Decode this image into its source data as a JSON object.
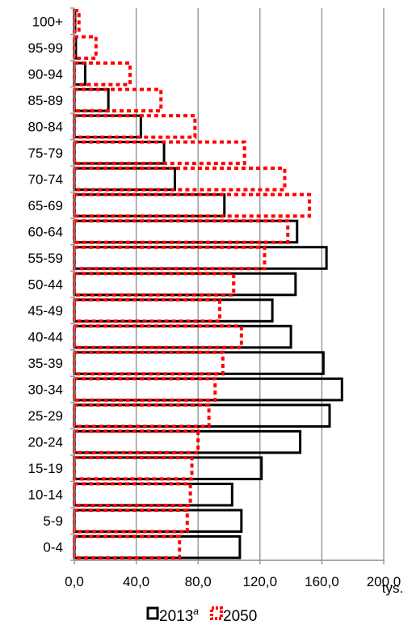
{
  "chart_data": {
    "type": "bar",
    "orientation": "horizontal",
    "categories": [
      "0-4",
      "5-9",
      "10-14",
      "15-19",
      "20-24",
      "25-29",
      "30-34",
      "35-39",
      "40-44",
      "45-49",
      "50-44",
      "55-59",
      "60-64",
      "65-69",
      "70-74",
      "75-79",
      "80-84",
      "85-89",
      "90-94",
      "95-99",
      "100+"
    ],
    "series": [
      {
        "name": "2013",
        "name_superscript": "a",
        "values": [
          107,
          108,
          102,
          121,
          146,
          165,
          173,
          161,
          140,
          128,
          143,
          163,
          144,
          97,
          65,
          58,
          43,
          22,
          7,
          1,
          0.5
        ],
        "color": "#000000",
        "line_style": "solid"
      },
      {
        "name": "2050",
        "values": [
          68,
          73,
          75,
          76,
          80,
          87,
          91,
          96,
          108,
          94,
          103,
          123,
          138,
          152,
          136,
          110,
          78,
          56,
          36,
          14,
          3
        ],
        "color": "#ff0000",
        "line_style": "dotted"
      }
    ],
    "xlim": [
      0,
      200
    ],
    "xticks": [
      "0,0",
      "40,0",
      "80,0",
      "120,0",
      "160,0",
      "200,0"
    ],
    "x_unit": "tys.",
    "grid": "vertical",
    "legend": "bottom"
  }
}
